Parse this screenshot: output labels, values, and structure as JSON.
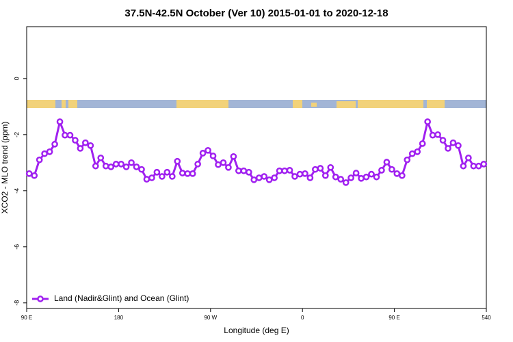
{
  "chart_data": {
    "type": "line",
    "title": "37.5N-42.5N October (Ver 10)   2015-01-01 to 2020-12-18",
    "x_label": "Longitude (deg E)",
    "y_label": "XCO2 - MLO trend (ppm)",
    "legend": "bottomleft",
    "xlim": [
      90,
      540
    ],
    "ylim": [
      -8.2,
      1.85
    ],
    "xticks": [
      {
        "value": 90,
        "label": "90 E"
      },
      180,
      {
        "value": 270,
        "label": "90 W"
      },
      {
        "value": 360,
        "label": "0"
      },
      {
        "value": 450,
        "label": "90 E"
      },
      540
    ],
    "yticks": [
      0,
      -2,
      -4,
      -6,
      -8
    ],
    "x": [
      92.5,
      97.5,
      102.5,
      107.5,
      112.5,
      117.5,
      122.5,
      127.5,
      132.5,
      137.5,
      142.5,
      147.5,
      152.5,
      157.5,
      162.5,
      167.5,
      172.5,
      177.5,
      182.5,
      187.5,
      192.5,
      197.5,
      202.5,
      207.5,
      212.5,
      217.5,
      222.5,
      227.5,
      232.5,
      237.5,
      242.5,
      247.5,
      252.5,
      257.5,
      262.5,
      267.5,
      272.5,
      277.5,
      282.5,
      287.5,
      292.5,
      297.5,
      302.5,
      307.5,
      312.5,
      317.5,
      322.5,
      327.5,
      332.5,
      337.5,
      342.5,
      347.5,
      352.5,
      357.5,
      362.5,
      367.5,
      372.5,
      377.5,
      382.5,
      387.5,
      392.5,
      397.5,
      402.5,
      407.5,
      412.5,
      417.5,
      422.5,
      427.5,
      432.5,
      437.5,
      442.5,
      447.5,
      452.5,
      457.5,
      462.5,
      467.5,
      472.5,
      477.5,
      482.5,
      487.5,
      492.5,
      497.5,
      502.5,
      507.5,
      512.5,
      517.5,
      522.5,
      527.5,
      532.5,
      537.5
    ],
    "series": [
      {
        "name": "Land (Nadir&Glint) and Ocean (Glint)",
        "color": "#a020f0",
        "values": [
          -3.39,
          -3.46,
          -2.9,
          -2.68,
          -2.61,
          -2.34,
          -1.54,
          -2.02,
          -2.02,
          -2.2,
          -2.49,
          -2.29,
          -2.39,
          -3.12,
          -2.83,
          -3.12,
          -3.15,
          -3.05,
          -3.05,
          -3.15,
          -3.0,
          -3.15,
          -3.24,
          -3.59,
          -3.54,
          -3.34,
          -3.49,
          -3.34,
          -3.49,
          -2.95,
          -3.37,
          -3.39,
          -3.39,
          -3.05,
          -2.66,
          -2.56,
          -2.76,
          -3.07,
          -3.0,
          -3.17,
          -2.78,
          -3.29,
          -3.29,
          -3.34,
          -3.61,
          -3.54,
          -3.49,
          -3.61,
          -3.54,
          -3.29,
          -3.29,
          -3.27,
          -3.49,
          -3.41,
          -3.39,
          -3.54,
          -3.24,
          -3.2,
          -3.46,
          -3.17,
          -3.51,
          -3.59,
          -3.71,
          -3.54,
          -3.37,
          -3.56,
          -3.51,
          -3.41,
          -3.51,
          -3.27,
          -2.98,
          -3.24,
          -3.39,
          -3.46,
          -2.9,
          -2.68,
          -2.61,
          -2.32,
          -1.54,
          -2.02,
          -2.0,
          -2.2,
          -2.49,
          -2.29,
          -2.39,
          -3.12,
          -2.83,
          -3.12,
          -3.12,
          -3.05
        ]
      }
    ]
  }
}
